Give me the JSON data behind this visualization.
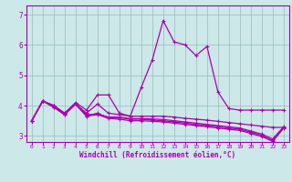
{
  "xlabel": "Windchill (Refroidissement éolien,°C)",
  "xlim": [
    -0.5,
    23.5
  ],
  "ylim": [
    2.8,
    7.3
  ],
  "yticks": [
    3,
    4,
    5,
    6,
    7
  ],
  "xticks": [
    0,
    1,
    2,
    3,
    4,
    5,
    6,
    7,
    8,
    9,
    10,
    11,
    12,
    13,
    14,
    15,
    16,
    17,
    18,
    19,
    20,
    21,
    22,
    23
  ],
  "line_color": "#aa00aa",
  "bg_color": "#cce8e8",
  "grid_color": "#99bbbb",
  "lines": [
    [
      3.5,
      4.15,
      4.0,
      3.75,
      4.1,
      3.85,
      4.35,
      4.35,
      3.75,
      3.65,
      4.6,
      5.5,
      6.8,
      6.1,
      6.0,
      5.65,
      5.95,
      4.45,
      3.9,
      3.85,
      3.85,
      3.85,
      3.85,
      3.85
    ],
    [
      3.5,
      4.15,
      4.0,
      3.75,
      4.05,
      3.75,
      4.05,
      3.75,
      3.7,
      3.65,
      3.65,
      3.65,
      3.65,
      3.62,
      3.58,
      3.55,
      3.52,
      3.48,
      3.44,
      3.4,
      3.36,
      3.32,
      3.28,
      3.28
    ],
    [
      3.5,
      4.15,
      3.95,
      3.7,
      4.05,
      3.65,
      3.75,
      3.6,
      3.6,
      3.55,
      3.55,
      3.52,
      3.5,
      3.46,
      3.42,
      3.38,
      3.34,
      3.3,
      3.26,
      3.22,
      3.12,
      3.02,
      2.85,
      3.28
    ],
    [
      3.5,
      4.15,
      3.95,
      3.7,
      4.05,
      3.65,
      3.7,
      3.58,
      3.55,
      3.5,
      3.5,
      3.48,
      3.46,
      3.42,
      3.38,
      3.34,
      3.3,
      3.26,
      3.22,
      3.18,
      3.08,
      2.98,
      2.82,
      3.25
    ],
    [
      3.5,
      4.15,
      4.0,
      3.72,
      4.07,
      3.7,
      3.72,
      3.62,
      3.62,
      3.57,
      3.57,
      3.56,
      3.54,
      3.5,
      3.46,
      3.42,
      3.38,
      3.34,
      3.3,
      3.26,
      3.16,
      3.06,
      2.9,
      3.3
    ]
  ]
}
